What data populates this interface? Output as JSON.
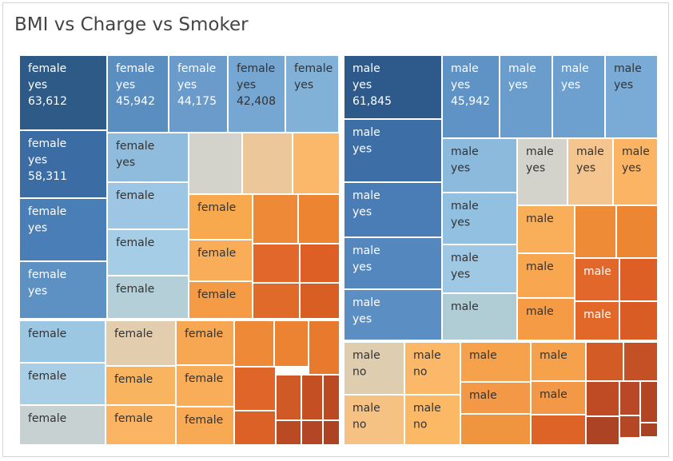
{
  "chart_data": {
    "type": "treemap",
    "title": "BMI vs Charge vs Smoker",
    "subtitle": "",
    "xlabel": "",
    "ylabel": "",
    "legend": "none",
    "color_encoding": "blue for smoker = yes, orange for smoker = no, beige/grey near the midpoint",
    "groups": [
      {
        "name": "female yes",
        "cells": [
          {
            "lines": [
              "female",
              "yes",
              "63,612"
            ],
            "value": 63612,
            "color": "#2e5a87"
          },
          {
            "lines": [
              "female",
              "yes",
              "45,942"
            ],
            "value": 45942,
            "color": "#5b8ec0"
          },
          {
            "lines": [
              "female",
              "yes",
              "44,175"
            ],
            "value": 44175,
            "color": "#6a9bcb"
          },
          {
            "lines": [
              "female",
              "yes",
              "42,408"
            ],
            "value": 42408,
            "color": "#76a6d2"
          },
          {
            "lines": [
              "female",
              "yes"
            ],
            "color": "#82b1d8"
          },
          {
            "lines": [
              "female",
              "yes",
              "58,311"
            ],
            "value": 58311,
            "color": "#3b6ca3"
          },
          {
            "lines": [
              "female",
              "yes"
            ],
            "color": "#4a7eb6"
          },
          {
            "lines": [
              "female",
              "yes"
            ],
            "color": "#5d91c3"
          },
          {
            "lines": [
              "female",
              "yes"
            ],
            "color": "#8fbcdd"
          },
          {
            "lines": [
              "female"
            ],
            "color": "#9cc6e3"
          },
          {
            "lines": [
              "female"
            ],
            "color": "#a6cde6"
          },
          {
            "lines": [
              "female"
            ],
            "color": "#b5cfd8"
          },
          {
            "lines": [],
            "color": "#d3d3cc"
          },
          {
            "lines": [],
            "color": "#ebc79a"
          },
          {
            "lines": [],
            "color": "#fbb86a"
          },
          {
            "lines": [
              "female"
            ],
            "color": "#f8a94e"
          },
          {
            "lines": [],
            "color": "#ee8a37"
          },
          {
            "lines": [],
            "color": "#ec8431"
          },
          {
            "lines": [
              "female"
            ],
            "color": "#f9ad58"
          },
          {
            "lines": [],
            "color": "#e2672a"
          },
          {
            "lines": [],
            "color": "#dd5f25"
          },
          {
            "lines": [
              "female"
            ],
            "color": "#f59b46"
          },
          {
            "lines": [],
            "color": "#e06a2a"
          },
          {
            "lines": [],
            "color": "#d85e24"
          }
        ]
      },
      {
        "name": "female no",
        "cells": [
          {
            "lines": [
              "female"
            ],
            "color": "#9cc7e3"
          },
          {
            "lines": [
              "female"
            ],
            "color": "#a9cfe6"
          },
          {
            "lines": [
              "female"
            ],
            "color": "#c7d1d1"
          },
          {
            "lines": [
              "female"
            ],
            "color": "#e2cdae"
          },
          {
            "lines": [
              "female"
            ],
            "color": "#f9b45f"
          },
          {
            "lines": [
              "female"
            ],
            "color": "#fbb463"
          },
          {
            "lines": [
              "female"
            ],
            "color": "#f7a651"
          },
          {
            "lines": [
              "female"
            ],
            "color": "#f9ad58"
          },
          {
            "lines": [
              "female"
            ],
            "color": "#f8a953"
          },
          {
            "lines": [],
            "color": "#ee8a37"
          },
          {
            "lines": [],
            "color": "#eb8333"
          },
          {
            "lines": [],
            "color": "#e87a2e"
          },
          {
            "lines": [],
            "color": "#e06528"
          },
          {
            "lines": [],
            "color": "#cf5a25"
          },
          {
            "lines": [],
            "color": "#c44f22"
          },
          {
            "lines": [],
            "color": "#bb4a22"
          },
          {
            "lines": [],
            "color": "#dc6127"
          },
          {
            "lines": [],
            "color": "#b94a24"
          },
          {
            "lines": [],
            "color": "#b34625"
          },
          {
            "lines": [],
            "color": "#ad4323"
          }
        ]
      },
      {
        "name": "male yes",
        "cells": [
          {
            "lines": [
              "male",
              "yes",
              "61,845"
            ],
            "value": 61845,
            "color": "#2d5a8a"
          },
          {
            "lines": [
              "male",
              "yes",
              "45,942"
            ],
            "value": 45942,
            "color": "#5f93c6"
          },
          {
            "lines": [
              "male",
              "yes"
            ],
            "color": "#6a9ccc"
          },
          {
            "lines": [
              "male",
              "yes"
            ],
            "color": "#6d9fcf"
          },
          {
            "lines": [
              "male",
              "yes"
            ],
            "color": "#7aaad6"
          },
          {
            "lines": [
              "male",
              "yes"
            ],
            "color": "#3d6ea5"
          },
          {
            "lines": [
              "male",
              "yes"
            ],
            "color": "#4a7cb5"
          },
          {
            "lines": [
              "male",
              "yes"
            ],
            "color": "#5387bd"
          },
          {
            "lines": [
              "male",
              "yes"
            ],
            "color": "#5b8fc4"
          },
          {
            "lines": [
              "male",
              "yes"
            ],
            "color": "#8bbadd"
          },
          {
            "lines": [
              "male",
              "yes"
            ],
            "color": "#d3d3cc"
          },
          {
            "lines": [
              "male",
              "yes"
            ],
            "color": "#f5c58f"
          },
          {
            "lines": [
              "male",
              "yes"
            ],
            "color": "#fbb463"
          },
          {
            "lines": [
              "male",
              "yes"
            ],
            "color": "#92c0e0"
          },
          {
            "lines": [
              "male",
              "yes"
            ],
            "color": "#9ec8e4"
          },
          {
            "lines": [
              "male"
            ],
            "color": "#b0cdd6"
          },
          {
            "lines": [
              "male"
            ],
            "color": "#f9ae59"
          },
          {
            "lines": [],
            "color": "#ee8b36"
          },
          {
            "lines": [],
            "color": "#ec8632"
          },
          {
            "lines": [
              "male"
            ],
            "color": "#f8a650"
          },
          {
            "lines": [
              "male"
            ],
            "color": "#e2672a"
          },
          {
            "lines": [],
            "color": "#dd5f25"
          },
          {
            "lines": [
              "male"
            ],
            "color": "#f59a45"
          },
          {
            "lines": [
              "male"
            ],
            "color": "#e16828"
          },
          {
            "lines": [],
            "color": "#d85c24"
          }
        ]
      },
      {
        "name": "male no",
        "cells": [
          {
            "lines": [
              "male",
              "no"
            ],
            "color": "#dfcdb0"
          },
          {
            "lines": [
              "male",
              "no"
            ],
            "color": "#fbb868"
          },
          {
            "lines": [
              "male",
              "no"
            ],
            "color": "#f6c283"
          },
          {
            "lines": [
              "male",
              "no"
            ],
            "color": "#fbb865"
          },
          {
            "lines": [
              "male"
            ],
            "color": "#f6a24d"
          },
          {
            "lines": [
              "male"
            ],
            "color": "#f6a24d"
          },
          {
            "lines": [
              "male"
            ],
            "color": "#f29846"
          },
          {
            "lines": [
              "male"
            ],
            "color": "#f29846"
          },
          {
            "lines": [],
            "color": "#f0953f"
          },
          {
            "lines": [],
            "color": "#de6327"
          },
          {
            "lines": [],
            "color": "#d35c26"
          },
          {
            "lines": [],
            "color": "#c45025"
          },
          {
            "lines": [],
            "color": "#be4b24"
          },
          {
            "lines": [],
            "color": "#b84826"
          },
          {
            "lines": [],
            "color": "#b14524"
          },
          {
            "lines": [],
            "color": "#ac4324"
          },
          {
            "lines": [],
            "color": "#b64725"
          },
          {
            "lines": [],
            "color": "#a94124"
          }
        ]
      }
    ]
  }
}
